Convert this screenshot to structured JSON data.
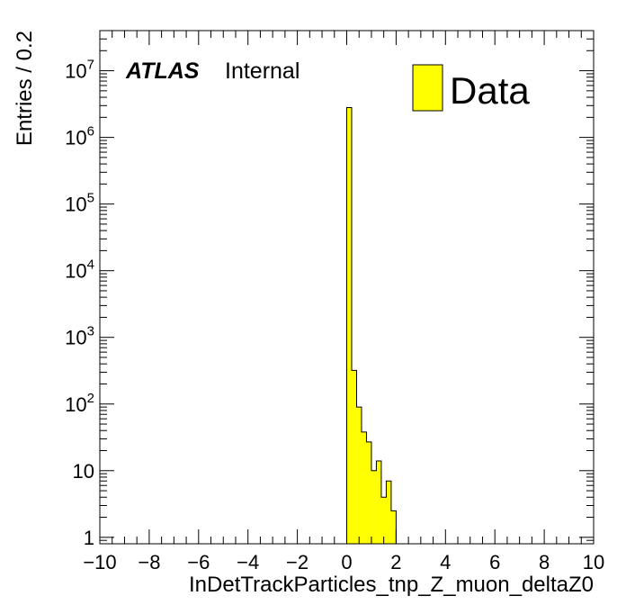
{
  "chart_data": {
    "type": "bar",
    "xlabel": "InDetTrackParticles_tnp_Z_muon_deltaZ0",
    "ylabel": "Entries / 0.2",
    "xlim": [
      -10,
      10
    ],
    "ylim": [
      0.8,
      40000000
    ],
    "y_scale": "log",
    "bin_width": 0.2,
    "x_ticks": [
      "−10",
      "−8",
      "−6",
      "−4",
      "−2",
      "0",
      "2",
      "4",
      "6",
      "8",
      "10"
    ],
    "y_ticks": [
      {
        "base": "1",
        "exp": ""
      },
      {
        "base": "10",
        "exp": ""
      },
      {
        "base": "10",
        "exp": "2"
      },
      {
        "base": "10",
        "exp": "3"
      },
      {
        "base": "10",
        "exp": "4"
      },
      {
        "base": "10",
        "exp": "5"
      },
      {
        "base": "10",
        "exp": "6"
      },
      {
        "base": "10",
        "exp": "7"
      }
    ],
    "series": [
      {
        "name": "Data",
        "color": "#ffff00",
        "bins": [
          {
            "x0": 0.0,
            "x1": 0.2,
            "y": 2800000
          },
          {
            "x0": 0.2,
            "x1": 0.4,
            "y": 320
          },
          {
            "x0": 0.4,
            "x1": 0.6,
            "y": 90
          },
          {
            "x0": 0.6,
            "x1": 0.8,
            "y": 38
          },
          {
            "x0": 0.8,
            "x1": 1.0,
            "y": 27
          },
          {
            "x0": 1.0,
            "x1": 1.2,
            "y": 10
          },
          {
            "x0": 1.2,
            "x1": 1.4,
            "y": 14
          },
          {
            "x0": 1.4,
            "x1": 1.6,
            "y": 4
          },
          {
            "x0": 1.6,
            "x1": 1.8,
            "y": 7
          },
          {
            "x0": 1.8,
            "x1": 2.0,
            "y": 2.5
          }
        ]
      }
    ],
    "grid": false,
    "legend_position": "top-right"
  },
  "labels": {
    "experiment": "ATLAS",
    "status": "Internal"
  }
}
